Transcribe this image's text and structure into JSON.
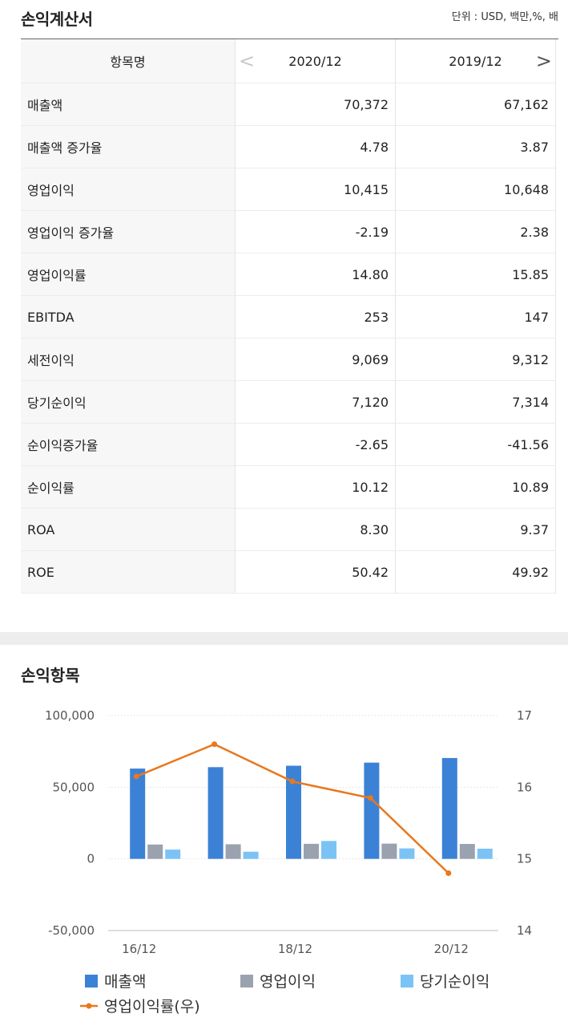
{
  "header": {
    "title": "손익계산서",
    "unit": "단위 : USD, 백만,%, 배"
  },
  "table": {
    "col_header": "항목명",
    "periods": [
      "2020/12",
      "2019/12"
    ],
    "rows": [
      {
        "label": "매출액",
        "values": [
          "70,372",
          "67,162"
        ]
      },
      {
        "label": "매출액 증가율",
        "values": [
          "4.78",
          "3.87"
        ]
      },
      {
        "label": "영업이익",
        "values": [
          "10,415",
          "10,648"
        ]
      },
      {
        "label": "영업이익 증가율",
        "values": [
          "-2.19",
          "2.38"
        ]
      },
      {
        "label": "영업이익률",
        "values": [
          "14.80",
          "15.85"
        ]
      },
      {
        "label": "EBITDA",
        "values": [
          "253",
          "147"
        ]
      },
      {
        "label": "세전이익",
        "values": [
          "9,069",
          "9,312"
        ]
      },
      {
        "label": "당기순이익",
        "values": [
          "7,120",
          "7,314"
        ]
      },
      {
        "label": "순이익증가율",
        "values": [
          "-2.65",
          "-41.56"
        ]
      },
      {
        "label": "순이익률",
        "values": [
          "10.12",
          "10.89"
        ]
      },
      {
        "label": "ROA",
        "values": [
          "8.30",
          "9.37"
        ]
      },
      {
        "label": "ROE",
        "values": [
          "50.42",
          "49.92"
        ]
      }
    ],
    "nav": {
      "prev": "<",
      "next": ">"
    }
  },
  "section": {
    "title": "손익항목"
  },
  "chart_data": {
    "type": "bar",
    "categories": [
      "16/12",
      "17/12",
      "18/12",
      "19/12",
      "20/12"
    ],
    "x_tick_labels": [
      "16/12",
      "18/12",
      "20/12"
    ],
    "series": [
      {
        "name": "매출액",
        "type": "bar",
        "axis": "left",
        "color": "#3b82d6",
        "values": [
          63000,
          64000,
          65000,
          67162,
          70372
        ]
      },
      {
        "name": "영업이익",
        "type": "bar",
        "axis": "left",
        "color": "#9aa2b0",
        "values": [
          10000,
          10200,
          10500,
          10648,
          10415
        ]
      },
      {
        "name": "당기순이익",
        "type": "bar",
        "axis": "left",
        "color": "#7cc3f5",
        "values": [
          6500,
          5000,
          12500,
          7314,
          7120
        ]
      },
      {
        "name": "영업이익률(우)",
        "type": "line",
        "axis": "right",
        "color": "#e8781e",
        "values": [
          16.15,
          16.6,
          16.08,
          15.85,
          14.8
        ]
      }
    ],
    "y_left": {
      "min": -50000,
      "max": 100000,
      "ticks": [
        "100,000",
        "50,000",
        "0",
        "-50,000"
      ]
    },
    "y_right": {
      "min": 14,
      "max": 17,
      "ticks": [
        "17",
        "16",
        "15",
        "14"
      ]
    },
    "grid": true,
    "legend": "bottom"
  }
}
